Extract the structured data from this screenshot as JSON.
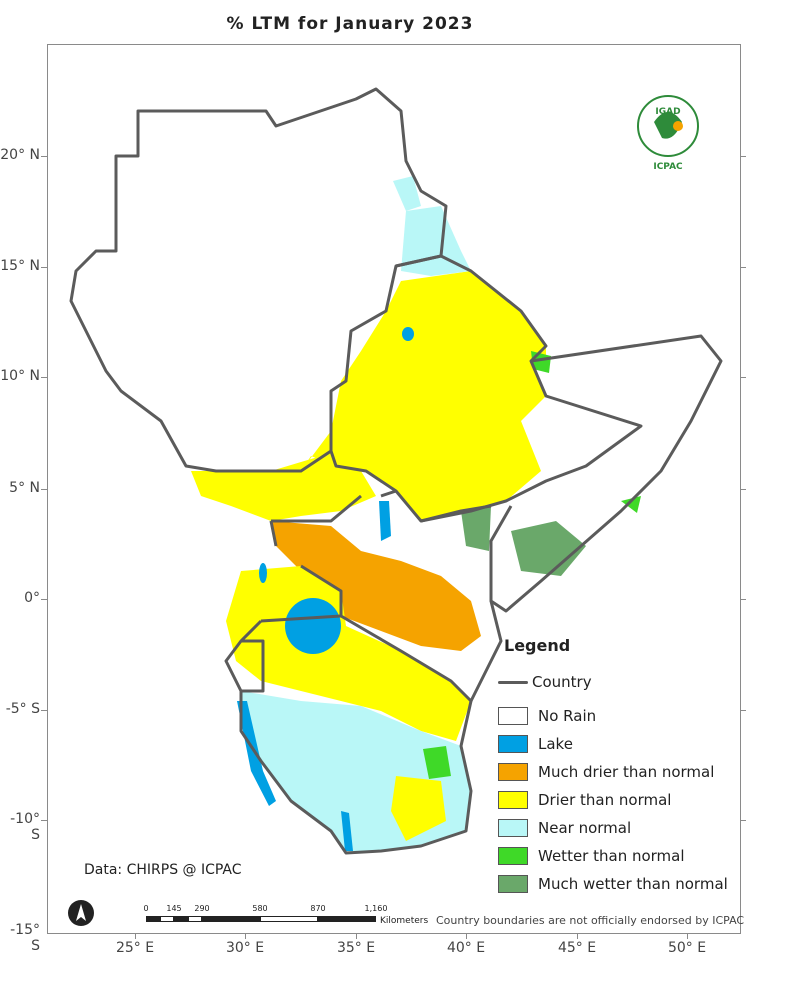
{
  "title": "% LTM   for January 2023",
  "lat_labels": [
    "20° N",
    "15° N",
    "10° N",
    "5° N",
    "0°",
    "-5° S",
    "-10° S",
    "-15° S"
  ],
  "lon_labels": [
    "25° E",
    "30° E",
    "35° E",
    "40° E",
    "45° E",
    "50° E"
  ],
  "legend": {
    "title": "Legend",
    "country": "Country",
    "items": [
      {
        "label": "No Rain",
        "color": "#ffffff"
      },
      {
        "label": "Lake",
        "color": "#00a0e3"
      },
      {
        "label": "Much drier than normal",
        "color": "#f5a300"
      },
      {
        "label": "Drier than normal",
        "color": "#ffff00"
      },
      {
        "label": "Near normal",
        "color": "#b9f7f7"
      },
      {
        "label": "Wetter than normal",
        "color": "#3fd928"
      },
      {
        "label": "Much wetter than normal",
        "color": "#6aa86a"
      }
    ]
  },
  "credit": "Data: CHIRPS @ ICPAC",
  "note": "Country boundaries are not officially endorsed by ICPAC",
  "scale": {
    "labels": [
      "0",
      "145",
      "290",
      "580",
      "870",
      "1,160"
    ],
    "unit": "Kilometers"
  },
  "logo": {
    "top": "IGAD",
    "bottom": "ICPAC"
  },
  "colors": {
    "boundary": "#5b5b5b",
    "frame": "#8a8a8a"
  }
}
